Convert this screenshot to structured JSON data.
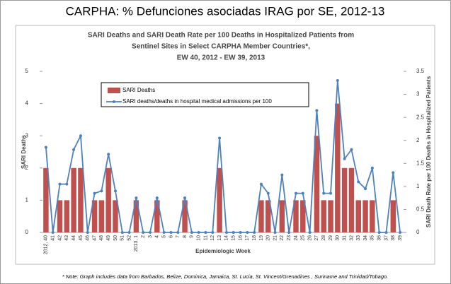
{
  "header": "CARPHA:  % Defunciones asociadas IRAG por SE, 2012-13",
  "note": "* Note: Graph includes data from Barbados, Belize, Dominica, Jamaica, St. Lucia, St. Vincent/Grenadines , Suriname and Trinidad/Tobago.",
  "chart_data": {
    "type": "combo",
    "title": [
      "SARI Deaths and SARI Death Rate per 100 Deaths in Hospitalized Patients from",
      "Sentinel Sites in Select CARPHA Member Countries*,",
      "EW 40, 2012 - EW 39, 2013"
    ],
    "x_label": "Epidemiologic Week",
    "y_label": "SARI Deaths",
    "y2_label": "SARI Death Rate per 100 Deaths in Hospitalized Patients",
    "categories": [
      "2012, 40",
      "41",
      "42",
      "43",
      "44",
      "45",
      "46",
      "47",
      "48",
      "49",
      "50",
      "51",
      "52",
      "2013, 1",
      "2",
      "3",
      "4",
      "5",
      "6",
      "7",
      "8",
      "9",
      "10",
      "11",
      "12",
      "13",
      "14",
      "15",
      "16",
      "17",
      "18",
      "19",
      "20",
      "21",
      "22",
      "23",
      "24",
      "25",
      "26",
      "27",
      "28",
      "29",
      "30",
      "31",
      "32",
      "33",
      "34",
      "35",
      "36",
      "37",
      "38",
      "39"
    ],
    "series": [
      {
        "name": "SARI Deaths",
        "type": "bar",
        "color": "#c0504d",
        "values": [
          2,
          0,
          1,
          1,
          2,
          2,
          0,
          1,
          1,
          2,
          1,
          0,
          0,
          1,
          0,
          0,
          1,
          0,
          0,
          0,
          1,
          0,
          0,
          0,
          0,
          2,
          0,
          0,
          0,
          0,
          0,
          1,
          1,
          0,
          1,
          0,
          1,
          1,
          0,
          3,
          1,
          1,
          4,
          2,
          2,
          1,
          1,
          1,
          0,
          0,
          1,
          0
        ]
      },
      {
        "name": "SARI deaths/deaths in hospital medical admissions per 100",
        "type": "line",
        "color": "#4f81bd",
        "axis": "y2",
        "values": [
          1.85,
          0,
          1.05,
          1.05,
          1.8,
          2.1,
          0,
          0.85,
          0.9,
          1.7,
          0.9,
          0,
          0,
          0.75,
          0,
          0,
          0.75,
          0,
          0,
          0,
          0.75,
          0,
          0,
          0,
          0,
          2.05,
          0,
          0,
          0,
          0,
          0,
          1.05,
          0.85,
          0,
          1.25,
          0,
          0.85,
          0.85,
          0,
          2.65,
          0.85,
          0.85,
          3.3,
          1.6,
          1.8,
          1.1,
          0.95,
          1.4,
          0,
          0,
          1.3,
          0
        ]
      }
    ],
    "ylim": [
      0,
      5
    ],
    "yticks": [
      0,
      1,
      2,
      3,
      4,
      5
    ],
    "y2lim": [
      0,
      3.5
    ],
    "y2ticks": [
      0,
      0.5,
      1,
      1.5,
      2,
      2.5,
      3,
      3.5
    ],
    "grid": false,
    "legend": "top-left"
  }
}
